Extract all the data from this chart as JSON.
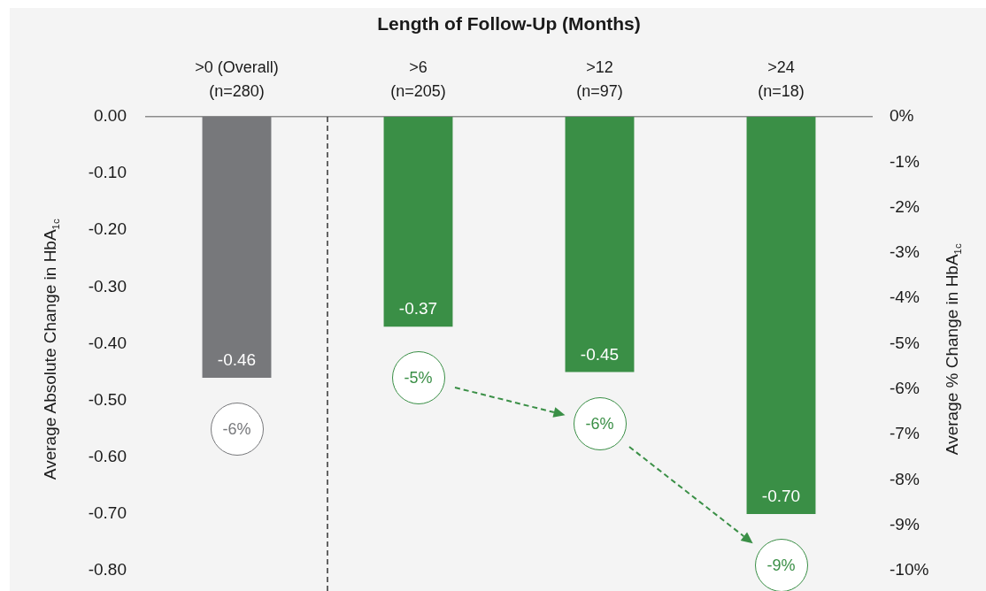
{
  "chart_data": {
    "type": "bar",
    "xlabel": "Length of Follow-Up (Months)",
    "ylabel": "Average Absolute Change in HbA$_{1c}$",
    "y2label": "Average % Change in HbA$_{1c}$",
    "categories": [
      ">0 (Overall)\n(n=280)",
      ">6\n(n=205)",
      ">12\n(n=97)",
      ">24\n(n=18)"
    ],
    "values": [
      -0.46,
      -0.37,
      -0.45,
      -0.7
    ],
    "colors": [
      "#77787b",
      "#3a8f46",
      "#3a8f46",
      "#3a8f46"
    ],
    "value_labels": [
      "-0.46",
      "-0.37",
      "-0.45",
      "-0.70"
    ],
    "ylim": [
      -0.8,
      0
    ],
    "yticks": [
      {
        "value": 0,
        "label": "0.00"
      },
      {
        "value": -0.1,
        "label": "-0.10"
      },
      {
        "value": -0.2,
        "label": "-0.20"
      },
      {
        "value": -0.3,
        "label": "-0.30"
      },
      {
        "value": -0.4,
        "label": "-0.40"
      },
      {
        "value": -0.5,
        "label": "-0.50"
      },
      {
        "value": -0.6,
        "label": "-0.60"
      },
      {
        "value": -0.7,
        "label": "-0.70"
      },
      {
        "value": -0.8,
        "label": "-0.80"
      }
    ],
    "y2lim": [
      -10,
      0
    ],
    "y2ticks": [
      {
        "value": 0,
        "label": "0%"
      },
      {
        "value": -1,
        "label": "-1%"
      },
      {
        "value": -2,
        "label": "-2%"
      },
      {
        "value": -3,
        "label": "-3%"
      },
      {
        "value": -4,
        "label": "-4%"
      },
      {
        "value": -5,
        "label": "-5%"
      },
      {
        "value": -6,
        "label": "-6%"
      },
      {
        "value": -7,
        "label": "-7%"
      },
      {
        "value": -8,
        "label": "-8%"
      },
      {
        "value": -9,
        "label": "-9%"
      },
      {
        "value": -10,
        "label": "-10%"
      }
    ],
    "annotations": [
      {
        "text": "-6%",
        "x": ">0 (Overall)\n(n=280)",
        "y": -0.46
      },
      {
        "text": "-5%",
        "x": ">6\n(n=205)",
        "y": -0.37
      },
      {
        "text": "-6%",
        "x": ">12\n(n=97)",
        "y": -0.45
      },
      {
        "text": "-9%",
        "x": ">24\n(n=18)",
        "y": -0.7
      }
    ],
    "grid": false,
    "legend": false
  }
}
